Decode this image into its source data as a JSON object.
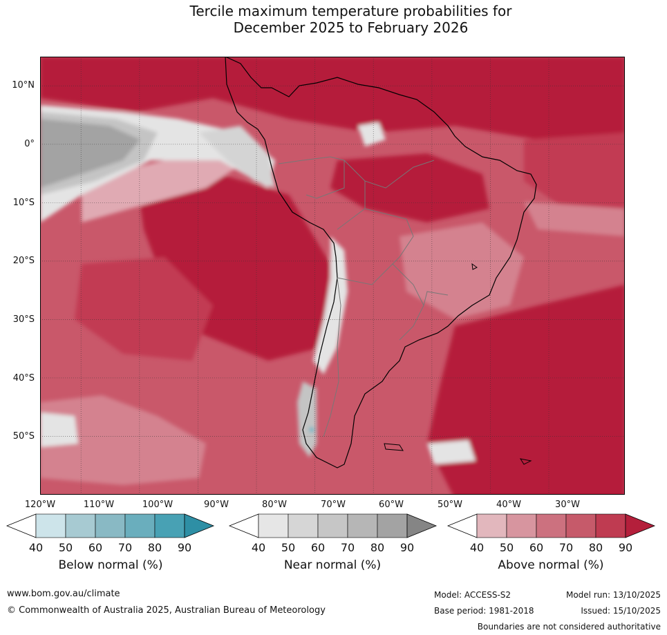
{
  "title": {
    "line1": "Tercile maximum temperature probabilities for",
    "line2": "December 2025 to February 2026"
  },
  "map": {
    "lat_labels": [
      "10°N",
      "0°",
      "10°S",
      "20°S",
      "30°S",
      "40°S",
      "50°S"
    ],
    "lat_values": [
      10,
      0,
      -10,
      -20,
      -30,
      -40,
      -50
    ],
    "lon_labels": [
      "120°W",
      "110°W",
      "100°W",
      "90°W",
      "80°W",
      "70°W",
      "60°W",
      "50°W",
      "40°W",
      "30°W"
    ],
    "lon_values": [
      -120,
      -110,
      -100,
      -90,
      -80,
      -70,
      -60,
      -50,
      -40,
      -30
    ],
    "lon_range": [
      -117,
      -17
    ],
    "lat_range": [
      -60,
      15
    ],
    "colors": {
      "ocean_base": "#c9586a",
      "above_90": "#b51e3a",
      "above_80": "#c23a52",
      "above_70": "#cc5e70",
      "above_60": "#d4828f",
      "above_50": "#e0aab3",
      "near_40": "#e4e4e4",
      "near_50": "#d4d4d4",
      "near_60": "#c4c4c4",
      "near_80": "#a3a3a3",
      "below_80": "#6fb6c5"
    }
  },
  "colorbars": [
    {
      "title": "Below normal (%)",
      "ticks": [
        "40",
        "50",
        "60",
        "70",
        "80",
        "90"
      ],
      "colors": [
        "#ffffff",
        "#cde4ea",
        "#a7cad2",
        "#89b9c4",
        "#6aaebd",
        "#48a1b4",
        "#2e8fa5"
      ]
    },
    {
      "title": "Near normal (%)",
      "ticks": [
        "40",
        "50",
        "60",
        "70",
        "80",
        "90"
      ],
      "colors": [
        "#ffffff",
        "#e6e6e6",
        "#d6d6d6",
        "#c6c6c6",
        "#b6b6b6",
        "#a3a3a3",
        "#858585"
      ]
    },
    {
      "title": "Above normal (%)",
      "ticks": [
        "40",
        "50",
        "60",
        "70",
        "80",
        "90"
      ],
      "colors": [
        "#ffffff",
        "#e2b7bd",
        "#d7959f",
        "#cc717f",
        "#c65a6a",
        "#bf3b51",
        "#b41f3b"
      ]
    }
  ],
  "footer": {
    "website": "www.bom.gov.au/climate",
    "copyright": "© Commonwealth of Australia 2025, Australian Bureau of Meteorology",
    "model": "Model: ACCESS-S2",
    "base_period": "Base period: 1981-2018",
    "model_run": "Model run: 13/10/2025",
    "issued": "Issued: 15/10/2025",
    "disclaimer": "Boundaries are not considered authoritative"
  }
}
